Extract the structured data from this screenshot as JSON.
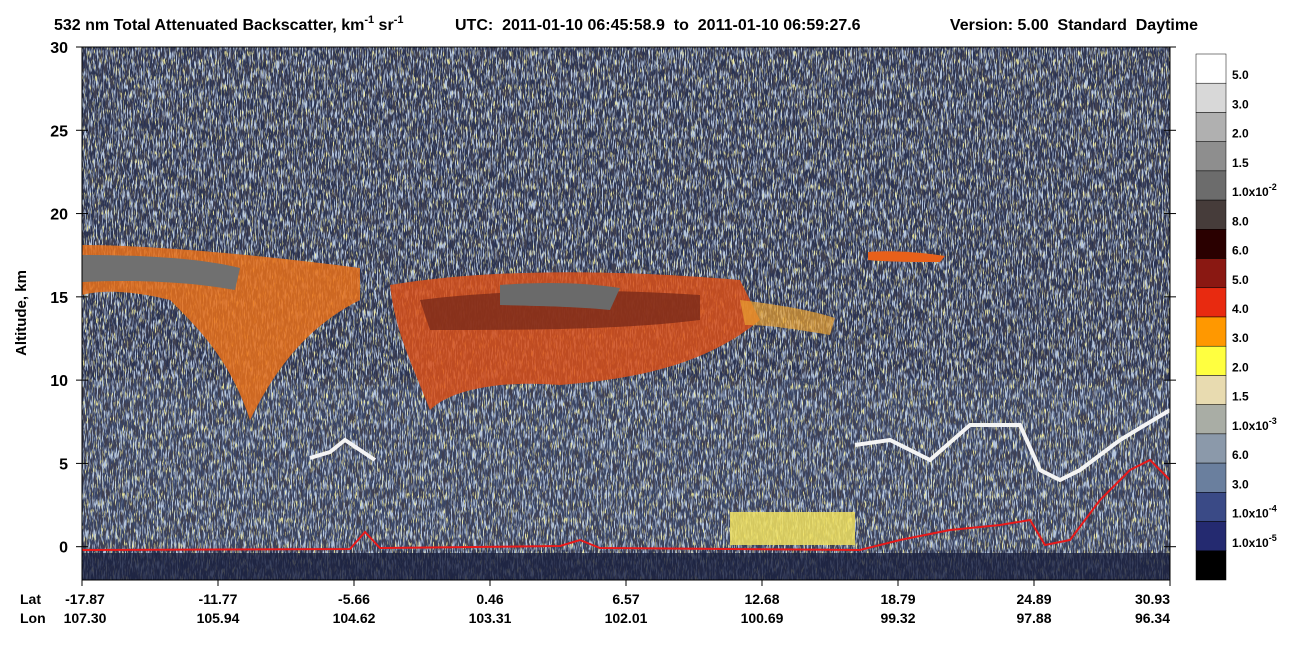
{
  "chart_data": {
    "type": "heatmap",
    "title": [
      "532 nm Total Attenuated Backscatter, km",
      "-1",
      " sr",
      "-1"
    ],
    "subtitle": "UTC:  2011-01-10 06:45:58.9  to  2011-01-10 06:59:27.6",
    "version": "Version: 5.00  Standard  Daytime",
    "ylabel": "Altitude, km",
    "ylim": [
      -2,
      30
    ],
    "yticks": [
      0,
      5,
      10,
      15,
      20,
      25,
      30
    ],
    "x_rows": [
      {
        "name": "Lat",
        "labels": [
          "-17.87",
          "-11.77",
          "-5.66",
          "0.46",
          "6.57",
          "12.68",
          "18.79",
          "24.89",
          "30.93"
        ]
      },
      {
        "name": "Lon",
        "labels": [
          "107.30",
          "105.94",
          "104.62",
          "103.31",
          "102.01",
          "100.69",
          "99.32",
          "97.88",
          "96.34"
        ]
      }
    ],
    "colorbar": {
      "colors": [
        "#ffffff",
        "#d8d8d8",
        "#b0b0b0",
        "#8e8e8e",
        "#6c6c6c",
        "#463c3a",
        "#2a0000",
        "#8a1812",
        "#e82a10",
        "#ff9800",
        "#ffff40",
        "#e8dbb0",
        "#a9ada5",
        "#8b99aa",
        "#6a7f9e",
        "#3a4a86",
        "#242a70",
        "#000000"
      ],
      "labels": [
        {
          "text": "5.0"
        },
        {
          "text": "3.0"
        },
        {
          "text": "2.0"
        },
        {
          "text": "1.5"
        },
        {
          "text": "1.0x10",
          "sup": "-2"
        },
        {
          "text": "8.0"
        },
        {
          "text": "6.0"
        },
        {
          "text": "5.0"
        },
        {
          "text": "4.0"
        },
        {
          "text": "3.0"
        },
        {
          "text": "2.0"
        },
        {
          "text": "1.5"
        },
        {
          "text": "1.0x10",
          "sup": "-3"
        },
        {
          "text": "6.0"
        },
        {
          "text": "3.0"
        },
        {
          "text": "1.0x10",
          "sup": "-4"
        },
        {
          "text": "1.0x10",
          "sup": "-5"
        }
      ]
    }
  }
}
